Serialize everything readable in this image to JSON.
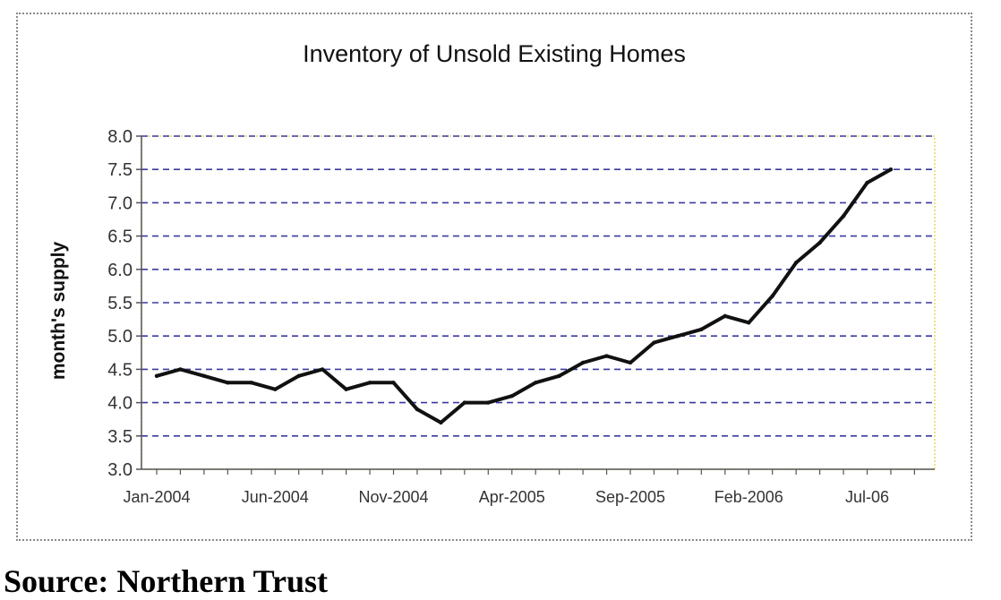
{
  "source_caption": "Source: Northern Trust",
  "colors": {
    "line": "#111111",
    "grid": "#3a3aa0",
    "plot_border": "#e8d860",
    "axis": "#555555"
  },
  "chart_data": {
    "type": "line",
    "title": "Inventory of Unsold Existing Homes",
    "ylabel": "month's supply",
    "xlabel": "",
    "ylim": [
      3.0,
      8.0
    ],
    "yticks": [
      "3.0",
      "3.5",
      "4.0",
      "4.5",
      "5.0",
      "5.5",
      "6.0",
      "6.5",
      "7.0",
      "7.5",
      "8.0"
    ],
    "grid": "horizontal dashed",
    "legend": "none",
    "x_tick_labels": [
      {
        "label": "Jan-2004",
        "month": "2004-01"
      },
      {
        "label": "Jun-2004",
        "month": "2004-06"
      },
      {
        "label": "Nov-2004",
        "month": "2004-11"
      },
      {
        "label": "Apr-2005",
        "month": "2005-04"
      },
      {
        "label": "Sep-2005",
        "month": "2005-09"
      },
      {
        "label": "Feb-2006",
        "month": "2006-02"
      },
      {
        "label": "Jul-06",
        "month": "2006-07"
      }
    ],
    "x": [
      "2004-01",
      "2004-02",
      "2004-03",
      "2004-04",
      "2004-05",
      "2004-06",
      "2004-07",
      "2004-08",
      "2004-09",
      "2004-10",
      "2004-11",
      "2004-12",
      "2005-01",
      "2005-02",
      "2005-03",
      "2005-04",
      "2005-05",
      "2005-06",
      "2005-07",
      "2005-08",
      "2005-09",
      "2005-10",
      "2005-11",
      "2005-12",
      "2006-01",
      "2006-02",
      "2006-03",
      "2006-04",
      "2006-05",
      "2006-06",
      "2006-07",
      "2006-08"
    ],
    "series": [
      {
        "values": [
          4.4,
          4.5,
          4.4,
          4.3,
          4.3,
          4.2,
          4.4,
          4.5,
          4.2,
          4.3,
          4.3,
          3.9,
          3.7,
          4.0,
          4.0,
          4.1,
          4.3,
          4.4,
          4.6,
          4.7,
          4.6,
          4.9,
          5.0,
          5.1,
          5.3,
          5.2,
          5.6,
          6.1,
          6.4,
          6.8,
          7.3,
          7.5
        ]
      }
    ]
  }
}
